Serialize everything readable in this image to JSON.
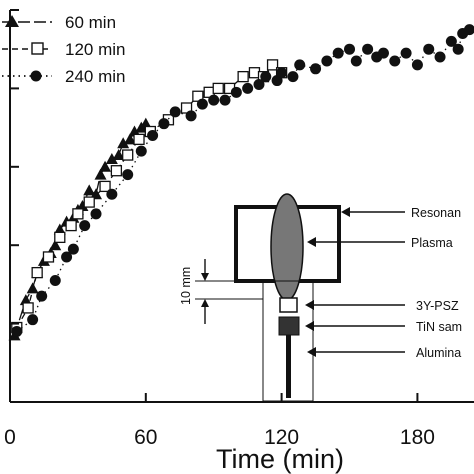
{
  "chart_data": {
    "type": "scatter",
    "title": "",
    "xlabel": "Time (min)",
    "ylabel": "",
    "xlim": [
      0,
      205
    ],
    "ylim": [
      0,
      1
    ],
    "xticks": [
      "0",
      "60",
      "120",
      "180"
    ],
    "xtick_values": [
      0,
      60,
      120,
      180
    ],
    "ytick_values": [
      0.0,
      0.2,
      0.4,
      0.6,
      0.8,
      1.0
    ],
    "grid": false,
    "legend_position": "top-left",
    "series": [
      {
        "name": "60 min",
        "marker": "triangle",
        "line_style": "long-dash",
        "x": [
          2,
          7,
          10,
          12,
          15,
          18,
          20,
          22,
          25,
          28,
          30,
          32,
          35,
          38,
          40,
          42,
          45,
          48,
          50,
          53,
          55,
          58,
          60
        ],
        "y": [
          0.17,
          0.26,
          0.29,
          0.33,
          0.36,
          0.38,
          0.4,
          0.44,
          0.46,
          0.47,
          0.49,
          0.5,
          0.54,
          0.53,
          0.58,
          0.6,
          0.62,
          0.63,
          0.66,
          0.67,
          0.69,
          0.7,
          0.71
        ]
      },
      {
        "name": "120 min",
        "marker": "open-square",
        "line_style": "short-dash",
        "x": [
          3,
          8,
          12,
          17,
          22,
          27,
          30,
          35,
          42,
          47,
          52,
          57,
          62,
          70,
          78,
          83,
          88,
          92,
          97,
          103,
          108,
          112,
          116,
          120
        ],
        "y": [
          0.19,
          0.24,
          0.33,
          0.37,
          0.42,
          0.45,
          0.48,
          0.51,
          0.55,
          0.59,
          0.63,
          0.67,
          0.69,
          0.72,
          0.75,
          0.78,
          0.79,
          0.8,
          0.8,
          0.83,
          0.84,
          0.83,
          0.86,
          0.84
        ]
      },
      {
        "name": "240 min",
        "marker": "filled-circle",
        "line_style": "dotted",
        "x": [
          3,
          10,
          14,
          20,
          25,
          28,
          33,
          38,
          45,
          52,
          58,
          63,
          68,
          73,
          80,
          85,
          90,
          95,
          100,
          105,
          110,
          113,
          118,
          120,
          125,
          128,
          135,
          140,
          145,
          150,
          153,
          158,
          162,
          165,
          170,
          175,
          180,
          185,
          190,
          195,
          198,
          200,
          203
        ],
        "y": [
          0.18,
          0.21,
          0.27,
          0.31,
          0.37,
          0.39,
          0.45,
          0.48,
          0.53,
          0.58,
          0.64,
          0.68,
          0.71,
          0.74,
          0.73,
          0.76,
          0.77,
          0.77,
          0.79,
          0.8,
          0.81,
          0.83,
          0.82,
          0.84,
          0.83,
          0.86,
          0.85,
          0.87,
          0.89,
          0.9,
          0.87,
          0.9,
          0.88,
          0.89,
          0.87,
          0.89,
          0.86,
          0.9,
          0.88,
          0.92,
          0.9,
          0.94,
          0.95
        ]
      }
    ],
    "inset_labels": {
      "resonator": "Resonan",
      "plasma": "Plasma",
      "psz": "3Y-PSZ",
      "tin": "TiN sam",
      "alumina": "Alumina",
      "scale": "10 mm"
    }
  }
}
